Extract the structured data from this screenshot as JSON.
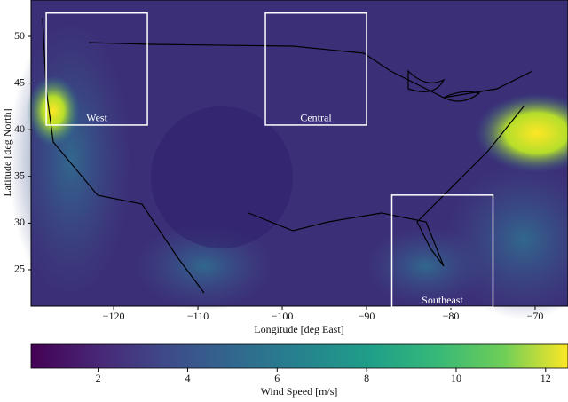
{
  "map": {
    "x_label": "Longitude [deg East]",
    "y_label": "Latitude [deg North]",
    "xlim": [
      -129.8,
      -66.1
    ],
    "ylim": [
      21.1,
      53.9
    ],
    "xticks": [
      {
        "value": -120,
        "label": "−120"
      },
      {
        "value": -110,
        "label": "−110"
      },
      {
        "value": -100,
        "label": "−100"
      },
      {
        "value": -90,
        "label": "−90"
      },
      {
        "value": -80,
        "label": "−80"
      },
      {
        "value": -70,
        "label": "−70"
      }
    ],
    "yticks": [
      25,
      30,
      35,
      40,
      45,
      50
    ],
    "regions": [
      {
        "label": "West",
        "lon": [
          -128,
          -116
        ],
        "lat": [
          40.5,
          52.5
        ]
      },
      {
        "label": "Central",
        "lon": [
          -102,
          -90
        ],
        "lat": [
          40.5,
          52.5
        ]
      },
      {
        "label": "Southeast",
        "lon": [
          -87,
          -75
        ],
        "lat": [
          21,
          33
        ]
      }
    ],
    "colorbar": {
      "label": "Wind Speed [m/s]",
      "lim": [
        0.5,
        12.5
      ],
      "ticks": [
        2,
        4,
        6,
        8,
        10,
        12
      ]
    }
  }
}
